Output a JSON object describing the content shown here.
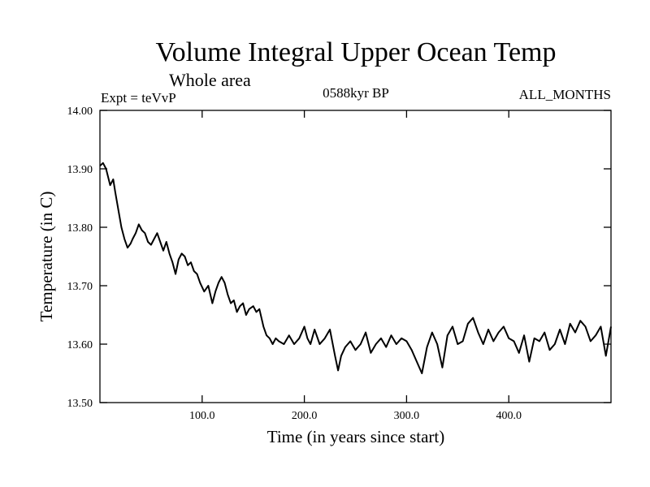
{
  "chart_data": {
    "type": "line",
    "title": "Volume Integral Upper Ocean Temp",
    "subtitle": "Whole area",
    "annotations": {
      "left": "Expt = teVvP",
      "center": "0588kyr BP",
      "right": "ALL_MONTHS"
    },
    "xlabel": "Time (in years since start)",
    "ylabel": "Temperature (in C)",
    "xlim": [
      0,
      500
    ],
    "ylim": [
      13.5,
      14.0
    ],
    "x_ticks": [
      100,
      200,
      300,
      400
    ],
    "x_tick_labels": [
      "100.0",
      "200.0",
      "300.0",
      "400.0"
    ],
    "y_ticks": [
      13.5,
      13.6,
      13.7,
      13.8,
      13.9,
      14.0
    ],
    "y_tick_labels": [
      "13.50",
      "13.60",
      "13.70",
      "13.80",
      "13.90",
      "14.00"
    ],
    "grid": false,
    "series": [
      {
        "color": "#000000",
        "x": [
          0,
          3,
          6,
          10,
          13,
          15,
          18,
          21,
          24,
          27,
          30,
          32,
          35,
          38,
          41,
          44,
          47,
          50,
          53,
          56,
          59,
          62,
          65,
          68,
          71,
          74,
          77,
          80,
          83,
          86,
          89,
          92,
          95,
          98,
          102,
          106,
          110,
          113,
          116,
          119,
          122,
          125,
          128,
          131,
          134,
          137,
          140,
          143,
          146,
          150,
          153,
          156,
          160,
          163,
          166,
          169,
          172,
          175,
          180,
          185,
          190,
          195,
          200,
          203,
          206,
          210,
          215,
          220,
          225,
          230,
          233,
          236,
          240,
          245,
          250,
          255,
          260,
          265,
          270,
          275,
          280,
          285,
          290,
          295,
          300,
          305,
          310,
          315,
          320,
          325,
          330,
          335,
          340,
          345,
          350,
          355,
          360,
          365,
          370,
          375,
          380,
          385,
          390,
          395,
          400,
          405,
          410,
          415,
          420,
          425,
          430,
          435,
          440,
          445,
          450,
          455,
          460,
          465,
          470,
          475,
          480,
          485,
          490,
          495,
          500
        ],
        "values": [
          13.905,
          13.91,
          13.9,
          13.872,
          13.882,
          13.86,
          13.83,
          13.8,
          13.78,
          13.765,
          13.772,
          13.78,
          13.79,
          13.805,
          13.795,
          13.79,
          13.775,
          13.77,
          13.78,
          13.79,
          13.775,
          13.76,
          13.775,
          13.755,
          13.74,
          13.72,
          13.745,
          13.755,
          13.75,
          13.735,
          13.74,
          13.725,
          13.72,
          13.705,
          13.69,
          13.7,
          13.67,
          13.69,
          13.705,
          13.715,
          13.705,
          13.685,
          13.67,
          13.675,
          13.655,
          13.665,
          13.67,
          13.65,
          13.66,
          13.665,
          13.655,
          13.66,
          13.63,
          13.615,
          13.61,
          13.6,
          13.61,
          13.605,
          13.6,
          13.615,
          13.6,
          13.61,
          13.63,
          13.61,
          13.6,
          13.625,
          13.6,
          13.61,
          13.625,
          13.58,
          13.555,
          13.58,
          13.595,
          13.605,
          13.59,
          13.6,
          13.62,
          13.585,
          13.6,
          13.61,
          13.595,
          13.615,
          13.6,
          13.61,
          13.605,
          13.59,
          13.57,
          13.55,
          13.595,
          13.62,
          13.6,
          13.56,
          13.615,
          13.63,
          13.6,
          13.605,
          13.635,
          13.645,
          13.62,
          13.6,
          13.625,
          13.605,
          13.62,
          13.63,
          13.61,
          13.605,
          13.585,
          13.615,
          13.57,
          13.61,
          13.605,
          13.62,
          13.59,
          13.6,
          13.625,
          13.6,
          13.635,
          13.62,
          13.64,
          13.63,
          13.605,
          13.615,
          13.63,
          13.58,
          13.63
        ]
      }
    ]
  }
}
